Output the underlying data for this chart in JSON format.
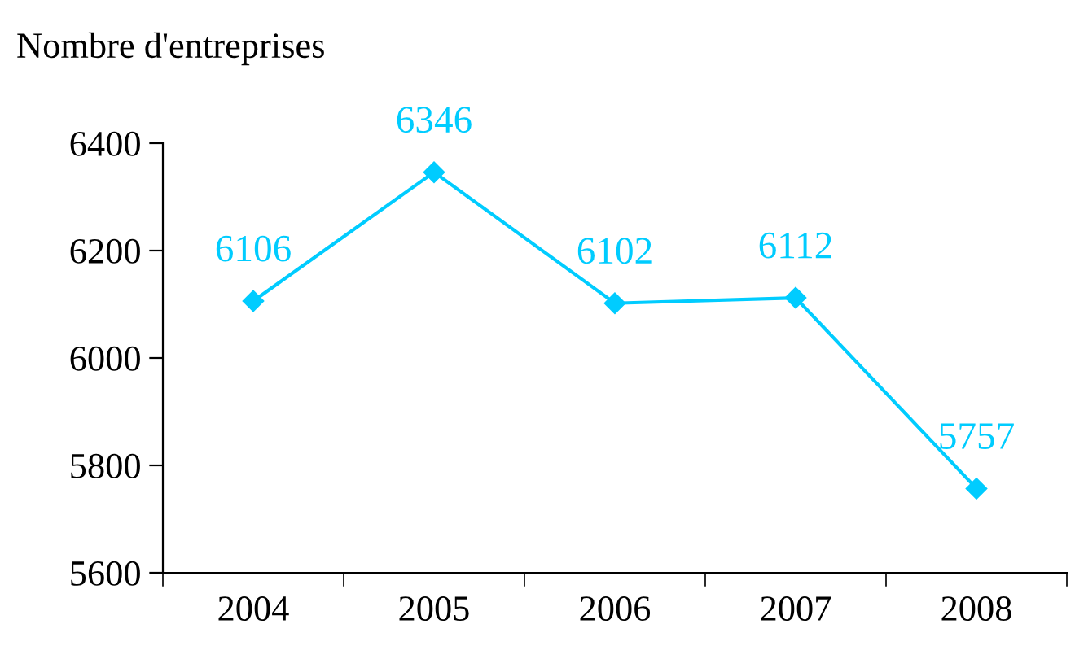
{
  "chart_data": {
    "type": "line",
    "ylabel": "Nombre d'entreprises",
    "categories": [
      "2004",
      "2005",
      "2006",
      "2007",
      "2008"
    ],
    "series": [
      {
        "color": "#00ccff",
        "values": [
          6106,
          6346,
          6102,
          6112,
          5757
        ]
      }
    ],
    "ylim": [
      5600,
      6400
    ],
    "yticks": [
      5600,
      5800,
      6000,
      6200,
      6400
    ],
    "marker": "diamond",
    "line_style": "solid",
    "data_labels": true,
    "grid": false,
    "legend": false
  }
}
